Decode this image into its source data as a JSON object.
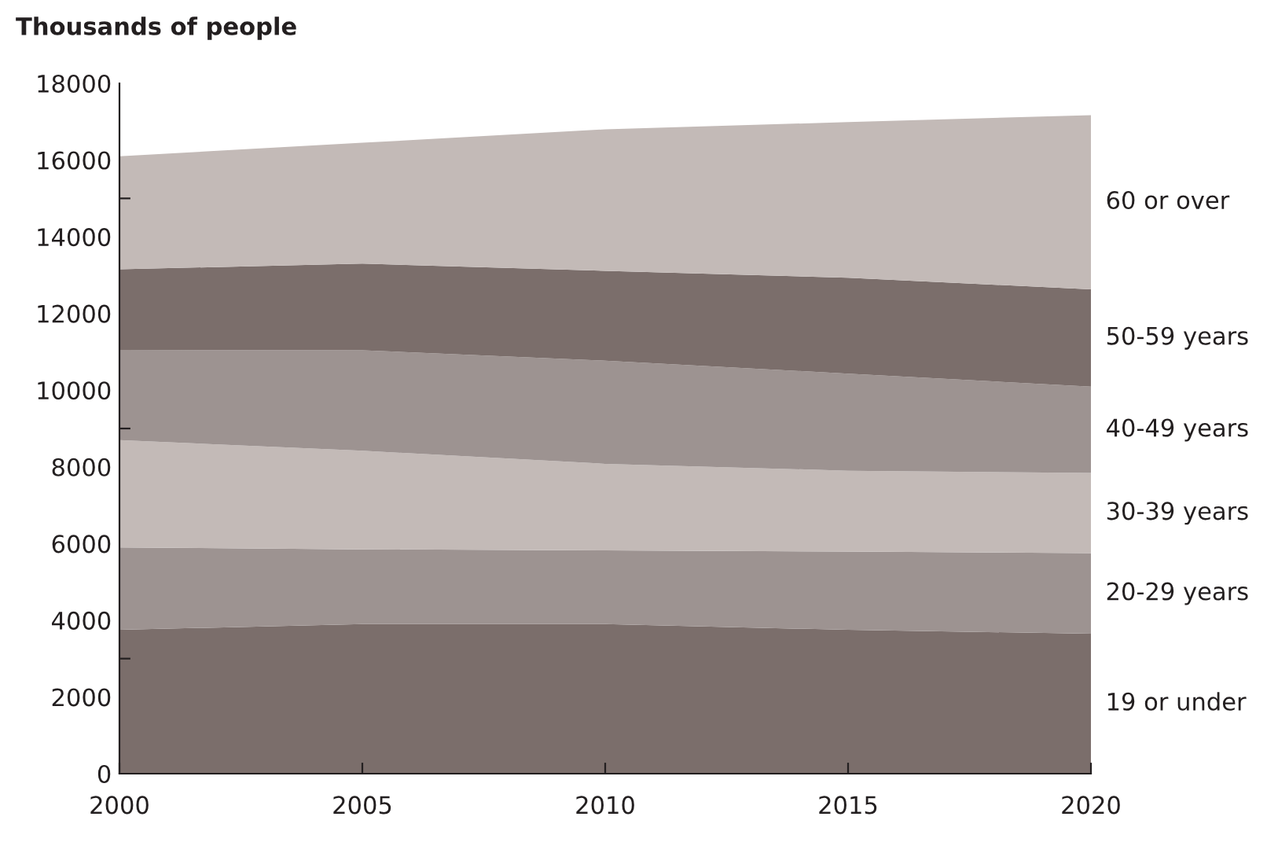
{
  "chart_data": {
    "type": "area",
    "stacked": true,
    "title": "Thousands of people",
    "x": [
      2000,
      2005,
      2010,
      2015,
      2020
    ],
    "series": [
      {
        "name": "19 or under",
        "color": "#7b6e6b",
        "values": [
          3750,
          3900,
          3900,
          3750,
          3650
        ]
      },
      {
        "name": "20-29 years",
        "color": "#9d9391",
        "values": [
          2150,
          1950,
          1920,
          2040,
          2100
        ]
      },
      {
        "name": "30-39 years",
        "color": "#c3bab7",
        "values": [
          2800,
          2570,
          2260,
          2110,
          2090
        ]
      },
      {
        "name": "40-49 years",
        "color": "#9d9391",
        "values": [
          2350,
          2620,
          2690,
          2530,
          2250
        ]
      },
      {
        "name": "50-59 years",
        "color": "#7b6e6b",
        "values": [
          2100,
          2260,
          2340,
          2500,
          2540
        ]
      },
      {
        "name": "60 or over",
        "color": "#c3bab7",
        "values": [
          2950,
          3150,
          3690,
          4060,
          4540
        ]
      }
    ],
    "xlim": [
      2000,
      2020
    ],
    "xticks": [
      2000,
      2005,
      2010,
      2015,
      2020
    ],
    "ylim": [
      0,
      18000
    ],
    "yticks": [
      0,
      2000,
      {
        "value": 3000,
        "label": null
      },
      4000,
      6000,
      8000,
      {
        "value": 9000,
        "label": null
      },
      10000,
      12000,
      14000,
      {
        "value": 15000,
        "label": null
      },
      16000,
      18000
    ],
    "grid": false,
    "legend": false
  }
}
